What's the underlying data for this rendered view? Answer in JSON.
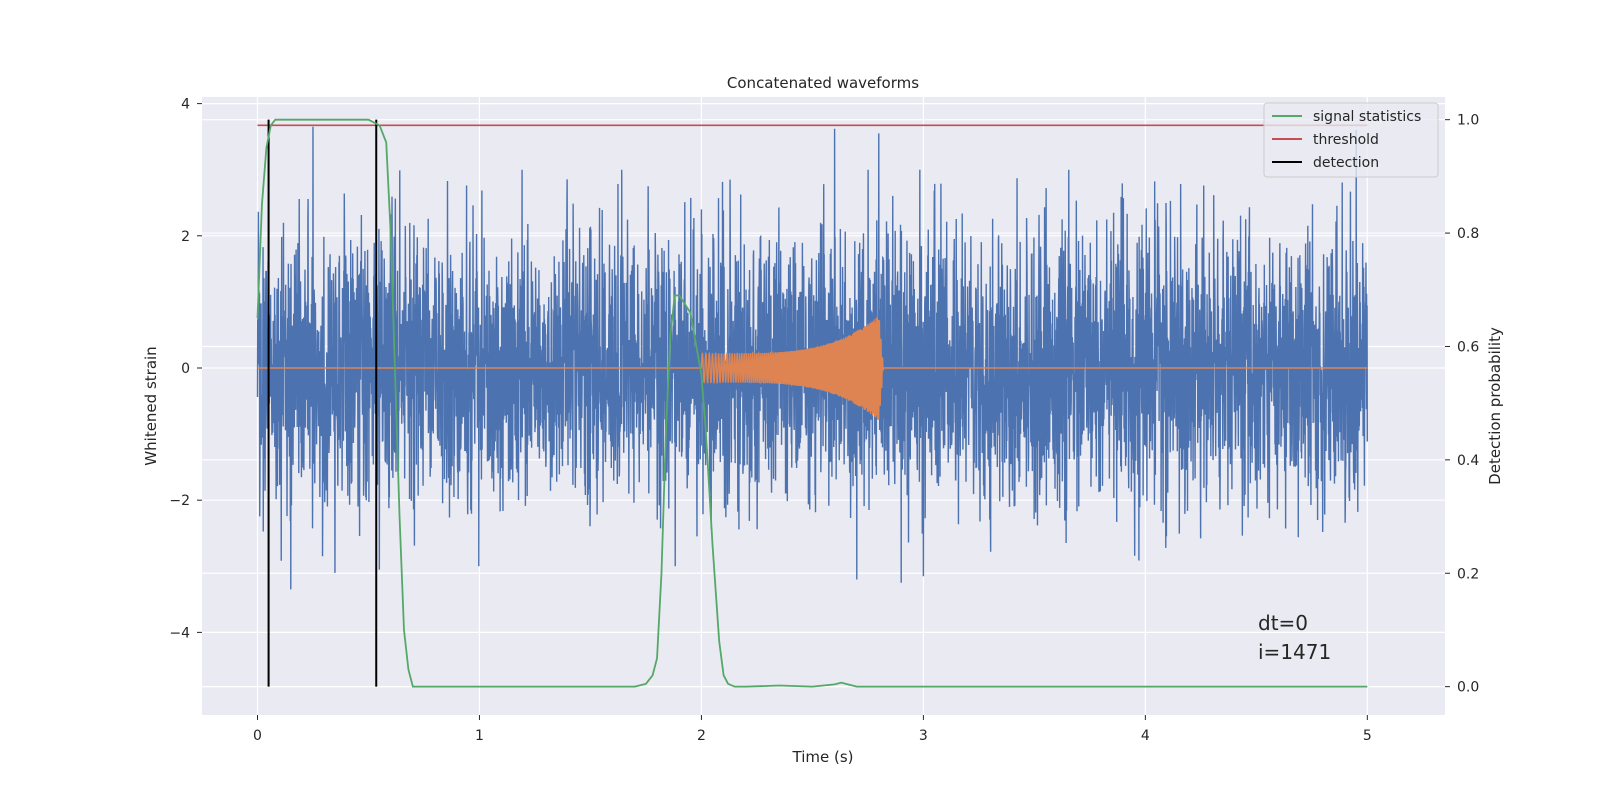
{
  "chart_data": {
    "type": "line",
    "title": "Concatenated waveforms",
    "xlabel": "Time (s)",
    "ylabel_left": "Whitened strain",
    "ylabel_right": "Detection probability",
    "xlim": [
      -0.25,
      5.35
    ],
    "ylim_left": [
      -5.25,
      4.1
    ],
    "ylim_right": [
      -0.05,
      1.04
    ],
    "xticks": [
      0,
      1,
      2,
      3,
      4,
      5
    ],
    "xtick_labels": [
      "0",
      "1",
      "2",
      "3",
      "4",
      "5"
    ],
    "yticks_left": [
      4,
      2,
      0,
      -2,
      -4
    ],
    "ytick_labels_left": [
      "4",
      "2",
      "0",
      "−2",
      "−4"
    ],
    "yticks_right": [
      1.0,
      0.8,
      0.6,
      0.4,
      0.2,
      0.0
    ],
    "ytick_labels_right": [
      "1.0",
      "0.8",
      "0.6",
      "0.4",
      "0.2",
      "0.0"
    ],
    "grid": true,
    "legend_position": "top-right",
    "series": [
      {
        "name": "signal statistics",
        "axis": "right",
        "color": "#55a868",
        "x": [
          0.0,
          0.02,
          0.04,
          0.06,
          0.08,
          0.1,
          0.2,
          0.3,
          0.4,
          0.5,
          0.55,
          0.58,
          0.6,
          0.62,
          0.64,
          0.66,
          0.68,
          0.7,
          0.75,
          1.0,
          1.5,
          1.7,
          1.75,
          1.78,
          1.8,
          1.82,
          1.84,
          1.86,
          1.88,
          1.9,
          1.95,
          2.0,
          2.02,
          2.05,
          2.08,
          2.1,
          2.12,
          2.15,
          2.2,
          2.35,
          2.5,
          2.6,
          2.63,
          2.66,
          2.7,
          3.0,
          4.0,
          5.0
        ],
        "values": [
          0.65,
          0.85,
          0.95,
          0.99,
          1.0,
          1.0,
          1.0,
          1.0,
          1.0,
          1.0,
          0.99,
          0.96,
          0.8,
          0.55,
          0.3,
          0.1,
          0.03,
          0.0,
          0.0,
          0.0,
          0.0,
          0.0,
          0.005,
          0.02,
          0.05,
          0.2,
          0.45,
          0.62,
          0.69,
          0.69,
          0.66,
          0.55,
          0.45,
          0.25,
          0.08,
          0.02,
          0.005,
          0.0,
          0.0,
          0.002,
          0.0,
          0.004,
          0.007,
          0.004,
          0.0,
          0.0,
          0.0,
          0.0
        ]
      },
      {
        "name": "threshold",
        "axis": "right",
        "color": "#c44e52",
        "x": [
          0.0,
          5.0
        ],
        "values": [
          0.99,
          0.99
        ]
      },
      {
        "name": "detection",
        "axis": "right",
        "color": "#000000",
        "type": "vlines",
        "x": [
          0.05,
          0.535
        ],
        "ymin": 0.0,
        "ymax": 1.0
      },
      {
        "axis": "left",
        "color": "#4c72b0",
        "type": "noise",
        "x_range": [
          0.0,
          5.0
        ],
        "std": 1.0,
        "peak_values": [
          3.65,
          3.62,
          3.6,
          3.55,
          -3.35,
          -3.15,
          -3.1,
          -3.2,
          -3.05,
          -3.25
        ]
      },
      {
        "axis": "left",
        "color": "#dd8452",
        "type": "chirp",
        "x_range": [
          0.0,
          5.0
        ],
        "chirp_start": 2.0,
        "chirp_end": 2.8,
        "amp_start": 0.22,
        "amp_peak": 0.8
      }
    ],
    "annotations": [
      "dt=0",
      "i=1471"
    ]
  }
}
